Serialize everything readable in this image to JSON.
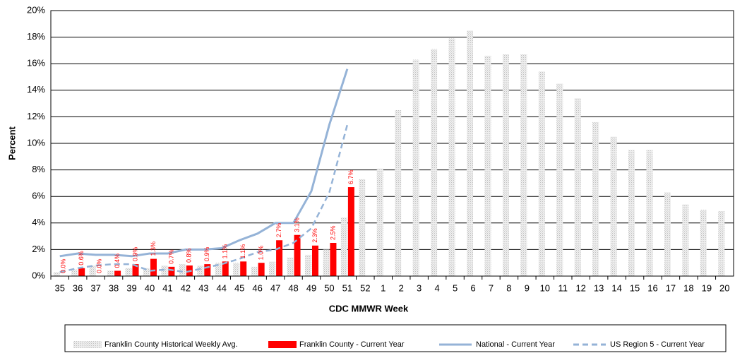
{
  "chart_data": {
    "type": "bar",
    "x_label": "CDC MMWR Week",
    "y_label": "Percent",
    "categories": [
      "35",
      "36",
      "37",
      "38",
      "39",
      "40",
      "41",
      "42",
      "43",
      "44",
      "45",
      "46",
      "47",
      "48",
      "49",
      "50",
      "51",
      "52",
      "1",
      "2",
      "3",
      "4",
      "5",
      "6",
      "7",
      "8",
      "9",
      "10",
      "11",
      "12",
      "13",
      "14",
      "15",
      "16",
      "17",
      "18",
      "19",
      "20"
    ],
    "ylim": [
      0,
      20
    ],
    "yticks": [
      {
        "value": 0,
        "label": "0%"
      },
      {
        "value": 2,
        "label": "2%"
      },
      {
        "value": 4,
        "label": "4%"
      },
      {
        "value": 6,
        "label": "6%"
      },
      {
        "value": 8,
        "label": "8%"
      },
      {
        "value": 10,
        "label": "10%"
      },
      {
        "value": 12,
        "label": "12%"
      },
      {
        "value": 14,
        "label": "14%"
      },
      {
        "value": 16,
        "label": "16%"
      },
      {
        "value": 18,
        "label": "18%"
      },
      {
        "value": 20,
        "label": "20%"
      }
    ],
    "grid": true,
    "series": [
      {
        "name": "Franklin County Historical Weekly Avg.",
        "kind": "bar",
        "color": "#d9d9d9",
        "values": [
          0.3,
          0.5,
          0.8,
          0.4,
          0.6,
          0.6,
          0.8,
          0.9,
          0.8,
          1.0,
          1.0,
          0.7,
          1.1,
          1.4,
          1.6,
          2.0,
          4.4,
          7.3,
          8.1,
          12.5,
          16.3,
          17.1,
          17.9,
          18.5,
          16.6,
          16.7,
          16.7,
          15.4,
          14.5,
          13.4,
          11.6,
          10.5,
          9.5,
          9.5,
          6.3,
          5.4,
          5.0,
          4.9
        ]
      },
      {
        "name": "Franklin County - Current Year",
        "kind": "bar",
        "color": "#ff0000",
        "values": [
          0.0,
          0.6,
          0.0,
          0.4,
          0.9,
          1.3,
          0.7,
          0.8,
          0.9,
          1.1,
          1.1,
          1.0,
          2.7,
          3.1,
          2.3,
          2.5,
          6.7,
          null,
          null,
          null,
          null,
          null,
          null,
          null,
          null,
          null,
          null,
          null,
          null,
          null,
          null,
          null,
          null,
          null,
          null,
          null,
          null,
          null
        ],
        "value_labels": [
          "0.0%",
          "0.6%",
          "0.0%",
          "0.4%",
          "0.9%",
          "1.3%",
          "0.7%",
          "0.8%",
          "0.9%",
          "1.1%",
          "1.1%",
          "1.0%",
          "2.7%",
          "3.1%",
          "2.3%",
          "2.5%",
          "6.7%",
          null,
          null,
          null,
          null,
          null,
          null,
          null,
          null,
          null,
          null,
          null,
          null,
          null,
          null,
          null,
          null,
          null,
          null,
          null,
          null,
          null
        ]
      },
      {
        "name": "National - Current Year",
        "kind": "line",
        "dash": false,
        "color": "#95b3d7",
        "values": [
          1.5,
          1.7,
          1.6,
          1.6,
          1.5,
          1.7,
          1.7,
          2.0,
          2.0,
          2.1,
          2.7,
          3.2,
          4.0,
          4.0,
          6.4,
          11.4,
          15.6,
          null,
          null,
          null,
          null,
          null,
          null,
          null,
          null,
          null,
          null,
          null,
          null,
          null,
          null,
          null,
          null,
          null,
          null,
          null,
          null,
          null
        ]
      },
      {
        "name": "US Region 5 - Current Year",
        "kind": "line",
        "dash": true,
        "color": "#95b3d7",
        "values": [
          0.3,
          0.6,
          0.8,
          0.9,
          0.9,
          0.4,
          0.5,
          0.3,
          0.6,
          0.9,
          1.3,
          1.8,
          2.0,
          2.5,
          3.6,
          6.3,
          11.4,
          null,
          null,
          null,
          null,
          null,
          null,
          null,
          null,
          null,
          null,
          null,
          null,
          null,
          null,
          null,
          null,
          null,
          null,
          null,
          null,
          null
        ]
      }
    ]
  }
}
